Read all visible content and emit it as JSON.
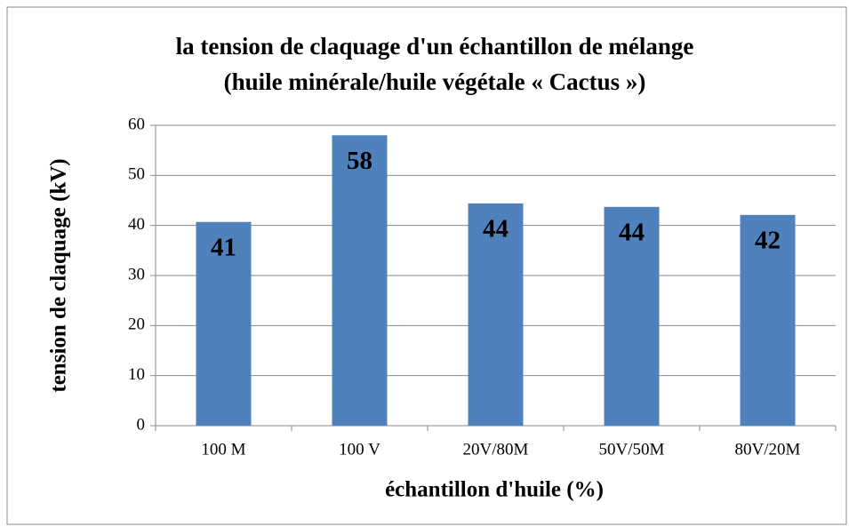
{
  "chart_data": {
    "type": "bar",
    "title": [
      "la tension de claquage d'un échantillon de mélange",
      "(huile minérale/huile végétale « Cactus »)"
    ],
    "xlabel": "échantillon d'huile (%)",
    "ylabel": "tension de claquage (kV)",
    "categories": [
      "100 M",
      "100 V",
      "20V/80M",
      "50V/50M",
      "80V/20M"
    ],
    "values": [
      40.7,
      58,
      44.4,
      43.7,
      42.1
    ],
    "value_labels": [
      "41",
      "58",
      "44",
      "44",
      "42"
    ],
    "color": "#4f81bd",
    "ylim": [
      0,
      60
    ],
    "yticks": [
      0,
      10,
      20,
      30,
      40,
      50,
      60
    ],
    "grid": true
  }
}
